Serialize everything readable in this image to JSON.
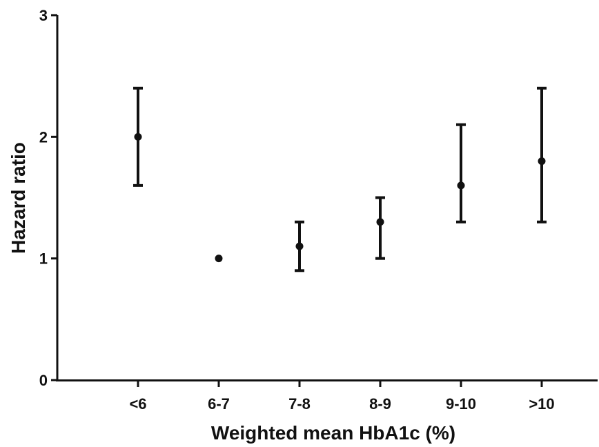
{
  "chart_data": {
    "type": "scatter",
    "title": "",
    "xlabel": "Weighted mean HbA1c (%)",
    "ylabel": "Hazard ratio",
    "categories": [
      "<6",
      "6-7",
      "7-8",
      "8-9",
      "9-10",
      ">10"
    ],
    "points": [
      {
        "category": "<6",
        "value": 2.0,
        "lower": 1.6,
        "upper": 2.4
      },
      {
        "category": "6-7",
        "value": 1.0,
        "lower": null,
        "upper": null
      },
      {
        "category": "7-8",
        "value": 1.1,
        "lower": 0.9,
        "upper": 1.3
      },
      {
        "category": "8-9",
        "value": 1.3,
        "lower": 1.0,
        "upper": 1.5
      },
      {
        "category": "9-10",
        "value": 1.6,
        "lower": 1.3,
        "upper": 2.1
      },
      {
        "category": ">10",
        "value": 1.8,
        "lower": 1.3,
        "upper": 2.4
      }
    ],
    "ylim": [
      0,
      3
    ],
    "yticks": [
      "0",
      "1",
      "2",
      "3"
    ],
    "grid": false,
    "color": "#111111"
  }
}
